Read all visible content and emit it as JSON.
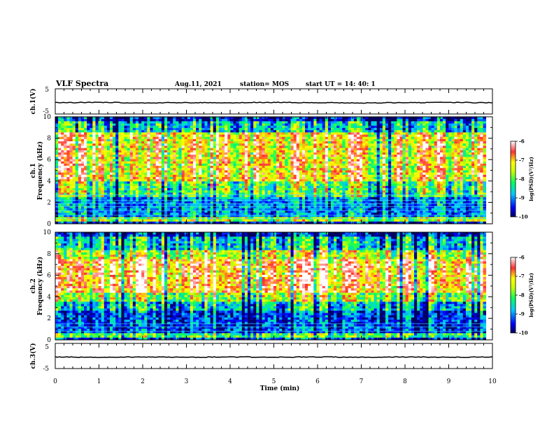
{
  "header": {
    "title": "VLF Spectra",
    "date": "Aug.11, 2021",
    "station": "station= MOS",
    "start": "start UT =  14: 40: 1"
  },
  "chart_data": [
    {
      "type": "line",
      "title": "",
      "ylabel": "ch.1(V)",
      "ylim": [
        -5,
        5
      ],
      "yticks": [
        "5",
        "-5"
      ],
      "xlim": [
        0,
        10
      ],
      "series": [
        {
          "values": [
            -0.5,
            -0.4,
            -0.6,
            -0.5,
            -0.5,
            -0.4,
            -0.5,
            -0.6,
            -0.5,
            -0.4,
            -0.5
          ]
        }
      ]
    },
    {
      "type": "heatmap",
      "ylabel": "ch.1\nFrequency (kHz)",
      "ylabel_line1": "ch.1",
      "ylabel_line2": "Frequency (kHz)",
      "ylim": [
        0,
        10
      ],
      "yticks": [
        "0",
        "2",
        "4",
        "6",
        "8",
        "10"
      ],
      "xlim": [
        0,
        10
      ],
      "colorbar": {
        "label": "log(PSD)(V²/Hz)",
        "range": [
          -10,
          -6
        ],
        "ticks": [
          "-6",
          "-7",
          "-8",
          "-9",
          "-10"
        ]
      },
      "data_end_min": 9.85
    },
    {
      "type": "heatmap",
      "ylabel": "ch.2\nFrequency (kHz)",
      "ylabel_line1": "ch.2",
      "ylabel_line2": "Frequency (kHz)",
      "ylim": [
        0,
        10
      ],
      "yticks": [
        "0",
        "2",
        "4",
        "6",
        "8",
        "10"
      ],
      "xlim": [
        0,
        10
      ],
      "colorbar": {
        "label": "log(PSD)(V²/Hz)",
        "range": [
          -10,
          -6
        ],
        "ticks": [
          "-6",
          "-7",
          "-8",
          "-9",
          "-10"
        ]
      },
      "data_end_min": 9.85
    },
    {
      "type": "line",
      "ylabel": "ch.3(V)",
      "ylim": [
        -5,
        5
      ],
      "yticks": [
        "5",
        "-5"
      ],
      "xlim": [
        0,
        10
      ],
      "xlabel": "Time (min)",
      "xticks": [
        "0",
        "1",
        "2",
        "3",
        "4",
        "5",
        "6",
        "7",
        "8",
        "9",
        "10"
      ],
      "series": [
        {
          "values": [
            -0.4,
            -0.5,
            -0.4,
            -0.5,
            -0.4,
            -0.5,
            -0.4,
            -0.5,
            -0.4,
            -0.5,
            -0.4
          ]
        }
      ]
    }
  ]
}
